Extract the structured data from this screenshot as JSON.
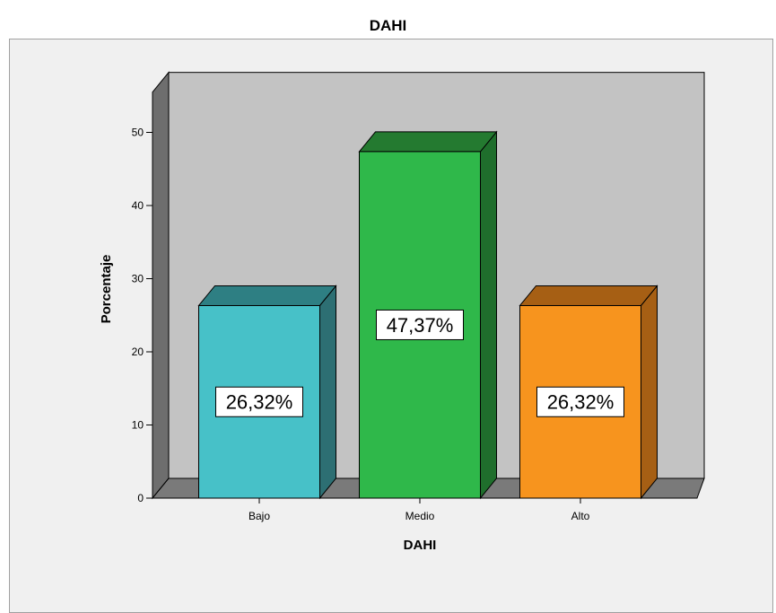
{
  "chart_data": {
    "type": "bar",
    "title": "DAHI",
    "xlabel": "DAHI",
    "ylabel": "Porcentaje",
    "ylim": [
      0,
      50
    ],
    "yticks": [
      0,
      10,
      20,
      30,
      40,
      50
    ],
    "categories": [
      "Bajo",
      "Medio",
      "Alto"
    ],
    "values": [
      26.32,
      47.37,
      26.32
    ],
    "data_labels": [
      "26,32%",
      "47,37%",
      "26,32%"
    ],
    "bar_colors": [
      "#47c1c8",
      "#2fb84a",
      "#f7941e"
    ],
    "bar_side_colors": [
      "#2d6f73",
      "#1f6e2c",
      "#a65f14"
    ],
    "bar_top_colors": [
      "#2e7f83",
      "#247a30",
      "#a65f14"
    ],
    "wall_color": "#c3c3c3",
    "floor_color": "#7a7a7a",
    "grid": false,
    "three_d": true
  }
}
